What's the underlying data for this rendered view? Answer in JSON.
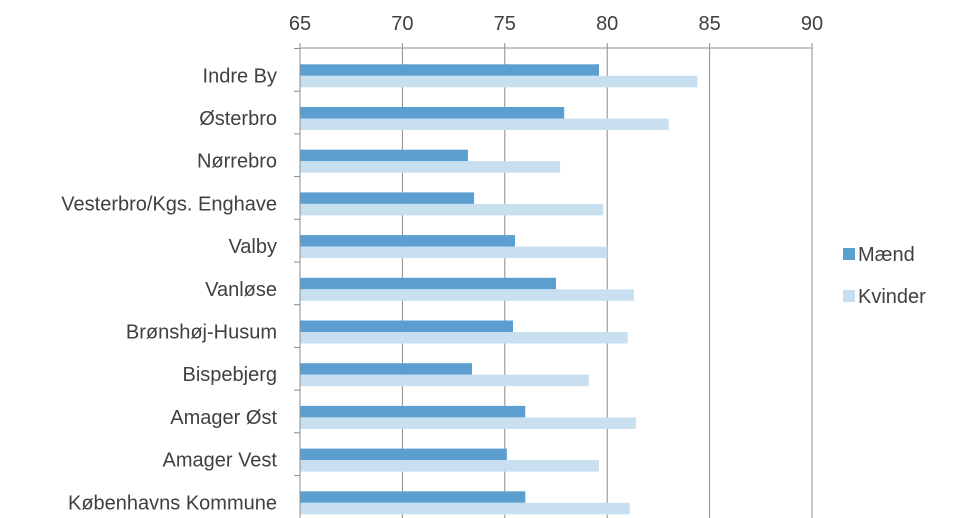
{
  "chart_data": {
    "type": "bar",
    "orientation": "horizontal",
    "categories": [
      "Indre By",
      "Østerbro",
      "Nørrebro",
      "Vesterbro/Kgs. Enghave",
      "Valby",
      "Vanløse",
      "Brønshøj-Husum",
      "Bispebjerg",
      "Amager Øst",
      "Amager Vest",
      "Københavns Kommune"
    ],
    "series": [
      {
        "name": "Mænd",
        "color": "#5b9fd0",
        "values": [
          79.6,
          77.9,
          73.2,
          73.5,
          75.5,
          77.5,
          75.4,
          73.4,
          76.0,
          75.1,
          76.0
        ]
      },
      {
        "name": "Kvinder",
        "color": "#c7dfef",
        "values": [
          84.4,
          83.0,
          77.7,
          79.8,
          80.0,
          81.3,
          81.0,
          79.1,
          81.4,
          79.6,
          81.1
        ]
      }
    ],
    "xlim": [
      65,
      90
    ],
    "xticks": [
      65,
      70,
      75,
      80,
      85,
      90
    ],
    "xaxis_position": "top",
    "grid": "vertical",
    "legend_position": "right",
    "title": "",
    "xlabel": "",
    "ylabel": ""
  }
}
